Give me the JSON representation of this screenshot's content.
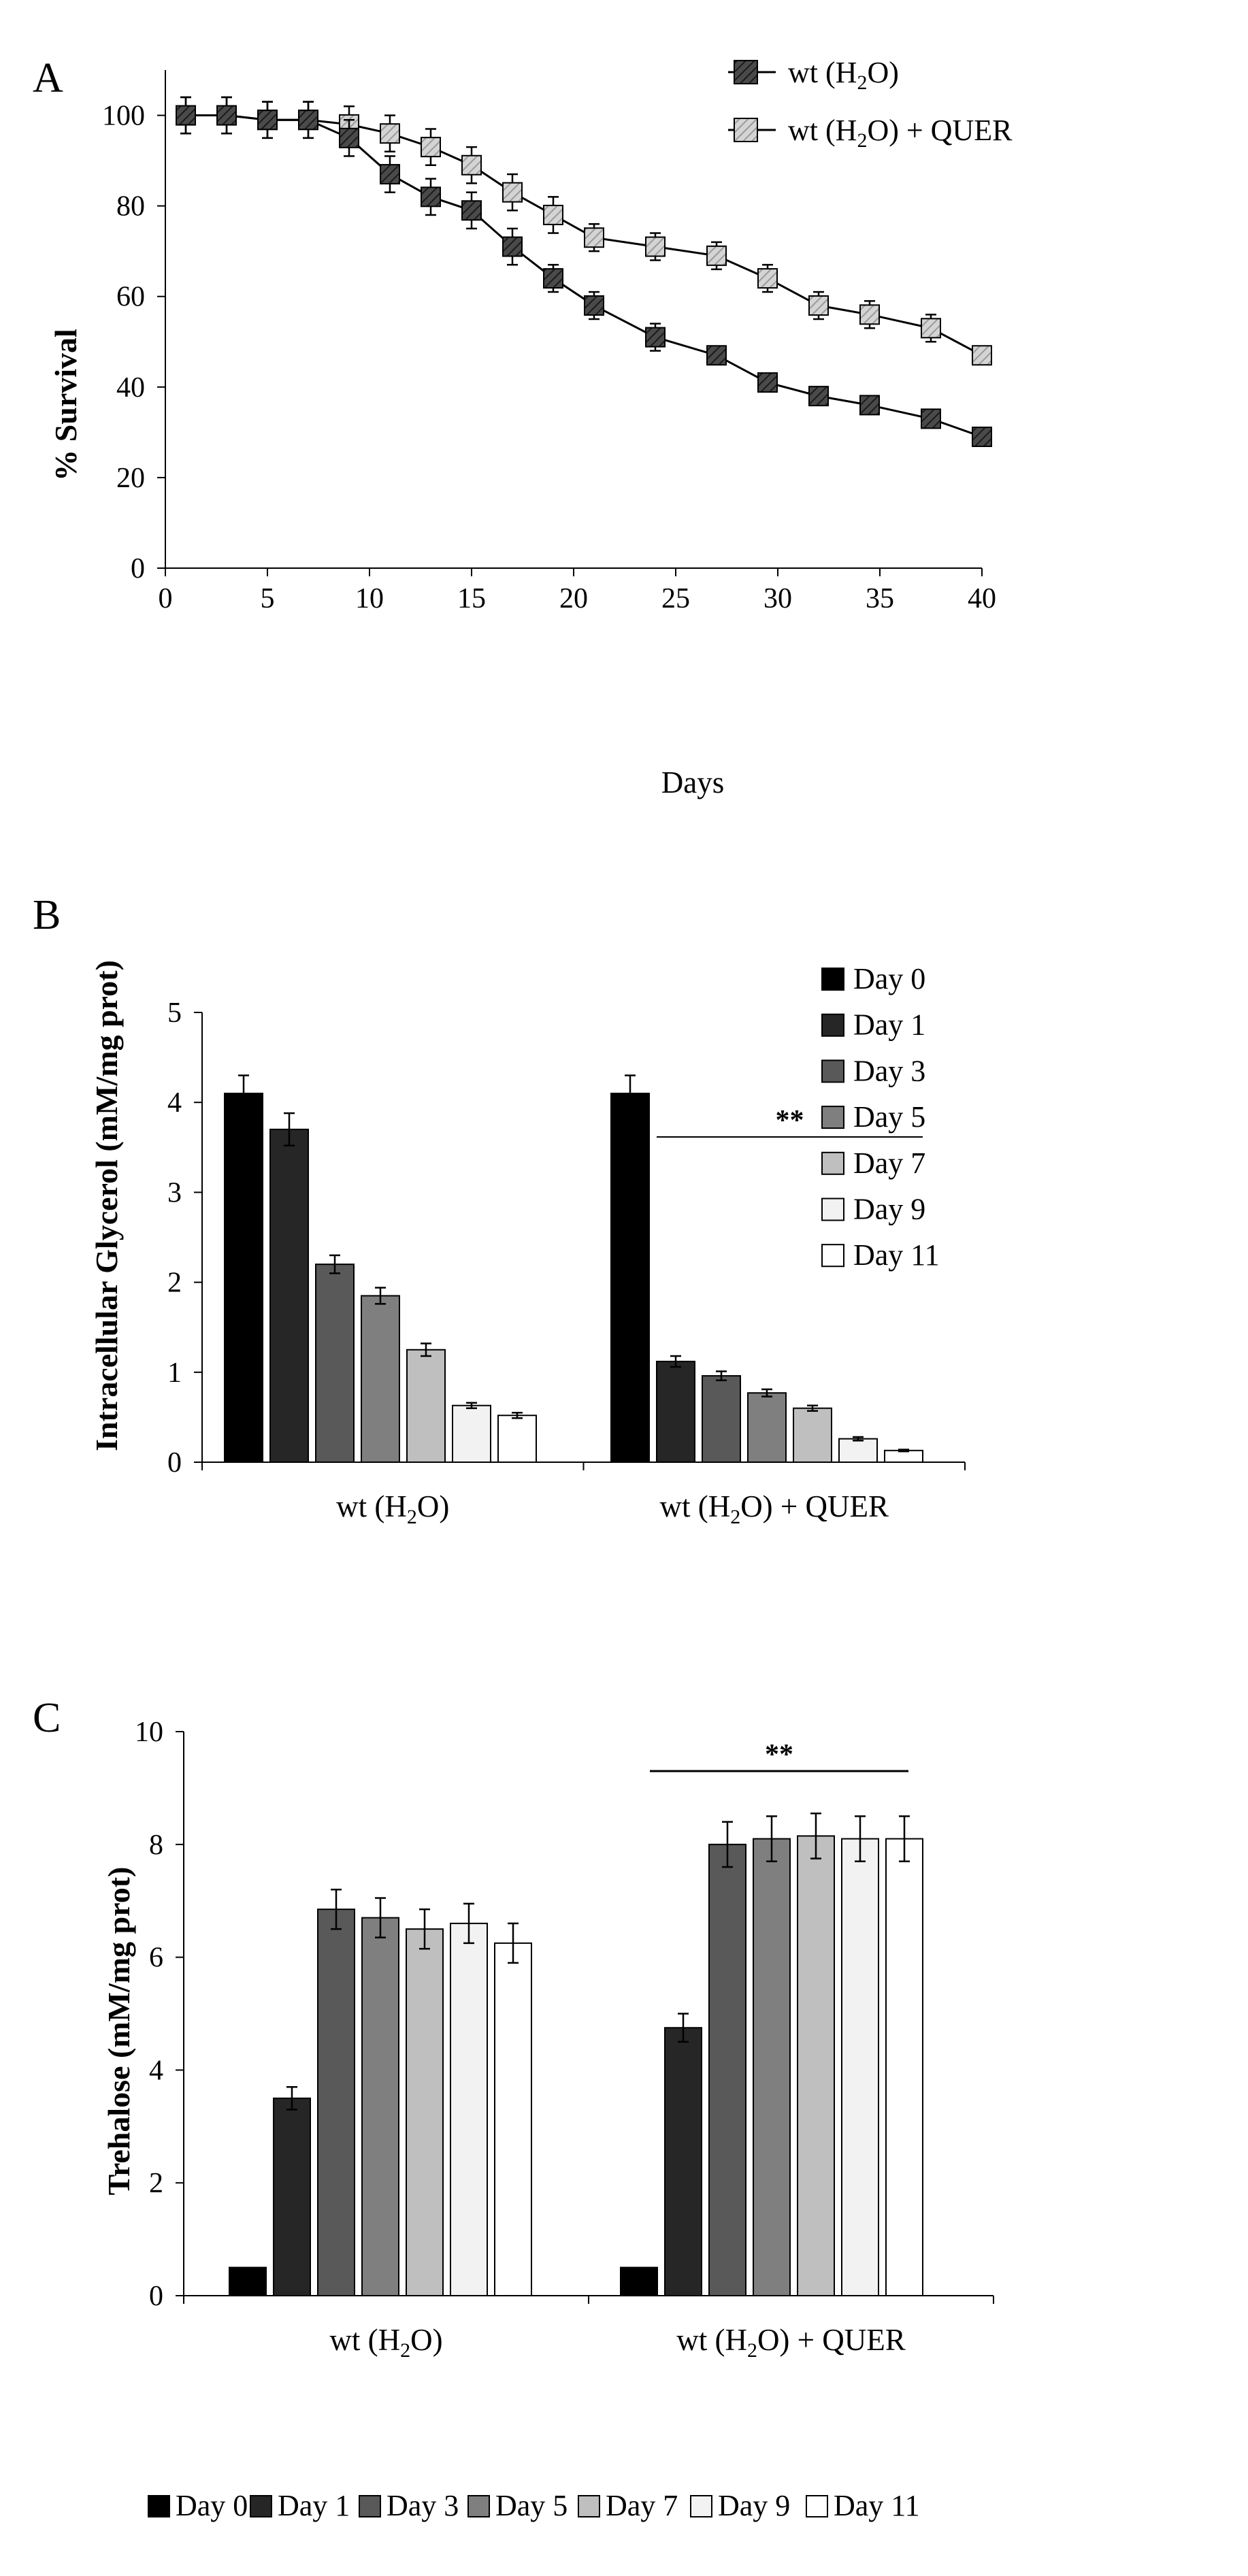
{
  "chart_data": [
    {
      "panel": "A",
      "type": "line",
      "xlabel": "Days",
      "ylabel": "% Survival",
      "xlim": [
        0,
        40
      ],
      "ylim": [
        0,
        110
      ],
      "xticks": [
        0,
        5,
        10,
        15,
        20,
        25,
        30,
        35,
        40
      ],
      "yticks": [
        0,
        20,
        40,
        60,
        80,
        100
      ],
      "legend_position": "top-right",
      "series": [
        {
          "name": "wt (H2O)",
          "legend": {
            "pre": "wt (H",
            "sub": "2",
            "post": "O)"
          },
          "fill": "#4a4a4a",
          "x": [
            1,
            3,
            5,
            7,
            9,
            11,
            13,
            15,
            17,
            19,
            21,
            24,
            27,
            29.5,
            32,
            34.5,
            37.5,
            40
          ],
          "y": [
            100,
            100,
            99,
            99,
            95,
            87,
            82,
            79,
            71,
            64,
            58,
            51,
            47,
            41,
            38,
            36,
            33,
            29
          ],
          "err": [
            4,
            4,
            4,
            4,
            4,
            4,
            4,
            4,
            4,
            3,
            3,
            3,
            2,
            2,
            2,
            2,
            2,
            2
          ]
        },
        {
          "name": "wt (H2O) + QUER",
          "legend": {
            "pre": "wt (H",
            "sub": "2",
            "post": "O) + QUER"
          },
          "fill": "#c8c8c8",
          "x": [
            1,
            3,
            5,
            7,
            9,
            11,
            13,
            15,
            17,
            19,
            21,
            24,
            27,
            29.5,
            32,
            34.5,
            37.5,
            40
          ],
          "y": [
            100,
            100,
            99,
            99,
            98,
            96,
            93,
            89,
            83,
            78,
            73,
            71,
            69,
            64,
            58,
            56,
            53,
            47
          ],
          "err": [
            4,
            4,
            4,
            4,
            4,
            4,
            4,
            4,
            4,
            4,
            3,
            3,
            3,
            3,
            3,
            3,
            3,
            2
          ]
        }
      ]
    },
    {
      "panel": "B",
      "type": "bar",
      "ylabel": "Intracellular Glycerol (mM/mg prot)",
      "ylim": [
        0,
        5
      ],
      "yticks": [
        0,
        1,
        2,
        3,
        4,
        5
      ],
      "legend_position": "right",
      "groups": [
        {
          "pre": "wt (H",
          "sub": "2",
          "post": "O)"
        },
        {
          "pre": "wt (H",
          "sub": "2",
          "post": "O) + QUER"
        }
      ],
      "series": [
        {
          "name": "Day 0",
          "fill": "#000000",
          "values": [
            4.1,
            4.1
          ],
          "err": [
            0.2,
            0.2
          ]
        },
        {
          "name": "Day 1",
          "fill": "#262626",
          "values": [
            3.7,
            1.12
          ],
          "err": [
            0.18,
            0.06
          ]
        },
        {
          "name": "Day 3",
          "fill": "#595959",
          "values": [
            2.2,
            0.96
          ],
          "err": [
            0.1,
            0.05
          ]
        },
        {
          "name": "Day 5",
          "fill": "#7f7f7f",
          "values": [
            1.85,
            0.77
          ],
          "err": [
            0.09,
            0.04
          ]
        },
        {
          "name": "Day 7",
          "fill": "#bfbfbf",
          "values": [
            1.25,
            0.6
          ],
          "err": [
            0.07,
            0.03
          ]
        },
        {
          "name": "Day 9",
          "fill": "#f2f2f2",
          "values": [
            0.63,
            0.26
          ],
          "err": [
            0.03,
            0.02
          ]
        },
        {
          "name": "Day 11",
          "fill": "#ffffff",
          "values": [
            0.52,
            0.13
          ],
          "err": [
            0.03,
            0.01
          ]
        }
      ],
      "annotation": {
        "text": "**",
        "group": 1
      }
    },
    {
      "panel": "C",
      "type": "bar",
      "ylabel": "Trehalose (mM/mg prot)",
      "ylim": [
        0,
        10
      ],
      "yticks": [
        0,
        2,
        4,
        6,
        8,
        10
      ],
      "legend_position": "bottom",
      "groups": [
        {
          "pre": "wt (H",
          "sub": "2",
          "post": "O)"
        },
        {
          "pre": "wt (H",
          "sub": "2",
          "post": "O) + QUER"
        }
      ],
      "series": [
        {
          "name": "Day 0",
          "fill": "#000000",
          "values": [
            0.5,
            0.5
          ],
          "err": [
            0,
            0
          ]
        },
        {
          "name": "Day 1",
          "fill": "#262626",
          "values": [
            3.5,
            4.75
          ],
          "err": [
            0.2,
            0.25
          ]
        },
        {
          "name": "Day 3",
          "fill": "#595959",
          "values": [
            6.85,
            8.0
          ],
          "err": [
            0.35,
            0.4
          ]
        },
        {
          "name": "Day 5",
          "fill": "#7f7f7f",
          "values": [
            6.7,
            8.1
          ],
          "err": [
            0.35,
            0.4
          ]
        },
        {
          "name": "Day 7",
          "fill": "#bfbfbf",
          "values": [
            6.5,
            8.15
          ],
          "err": [
            0.35,
            0.4
          ]
        },
        {
          "name": "Day 9",
          "fill": "#f2f2f2",
          "values": [
            6.6,
            8.1
          ],
          "err": [
            0.35,
            0.4
          ]
        },
        {
          "name": "Day 11",
          "fill": "#ffffff",
          "values": [
            6.25,
            8.1
          ],
          "err": [
            0.35,
            0.4
          ]
        }
      ],
      "annotation": {
        "text": "**",
        "group": 1
      }
    }
  ]
}
